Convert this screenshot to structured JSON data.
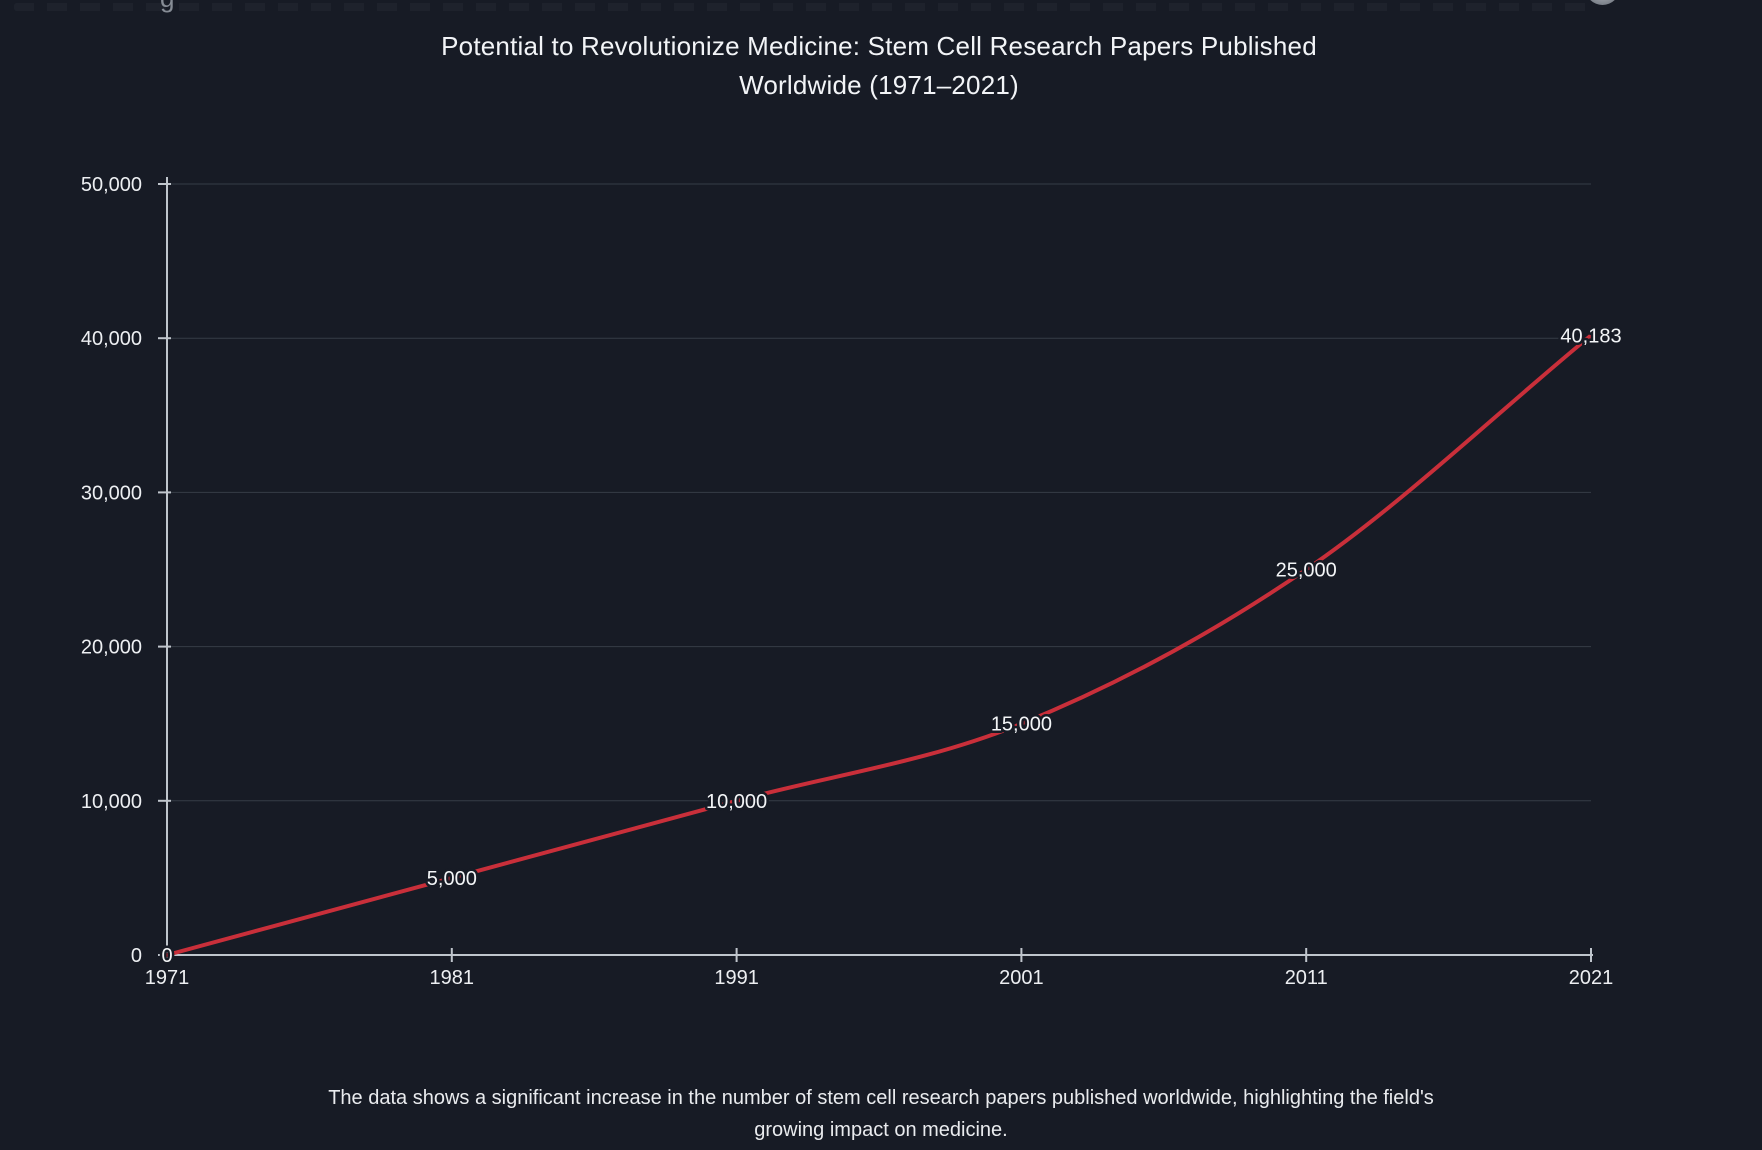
{
  "title": {
    "line1": "Potential to Revolutionize Medicine: Stem Cell Research Papers Published",
    "line2": "Worldwide (1971–2021)"
  },
  "caption": {
    "line1": "The data shows a significant increase in the number of stem cell research papers published worldwide, highlighting the field's",
    "line2": "growing impact on medicine."
  },
  "artifacts": {
    "cropped_glyph": "g"
  },
  "colors": {
    "background": "#171b25",
    "line": "#c92f3a",
    "grid": "#363c46",
    "axis": "#bfc5cc",
    "label_text": "#f3f5f7",
    "tick_text": "#edeff2"
  },
  "chart_data": {
    "type": "line",
    "title": "Potential to Revolutionize Medicine: Stem Cell Research Papers Published Worldwide (1971–2021)",
    "x": [
      1971,
      1981,
      1991,
      2001,
      2011,
      2021
    ],
    "values": [
      0,
      5000,
      10000,
      15000,
      25000,
      40183
    ],
    "point_labels": [
      "0",
      "5,000",
      "10,000",
      "15,000",
      "25,000",
      "40,183"
    ],
    "x_tick_labels": [
      "1971",
      "1981",
      "1991",
      "2001",
      "2011",
      "2021"
    ],
    "y_ticks": [
      0,
      10000,
      20000,
      30000,
      40000,
      50000
    ],
    "y_tick_labels": [
      "0",
      "10,000",
      "20,000",
      "30,000",
      "40,000",
      "50,000"
    ],
    "xlabel": "",
    "ylabel": "",
    "xlim": [
      1971,
      2021
    ],
    "ylim": [
      0,
      50000
    ],
    "grid": "horizontal",
    "legend": "none",
    "line_color": "#c92f3a",
    "curve": "monotone"
  }
}
